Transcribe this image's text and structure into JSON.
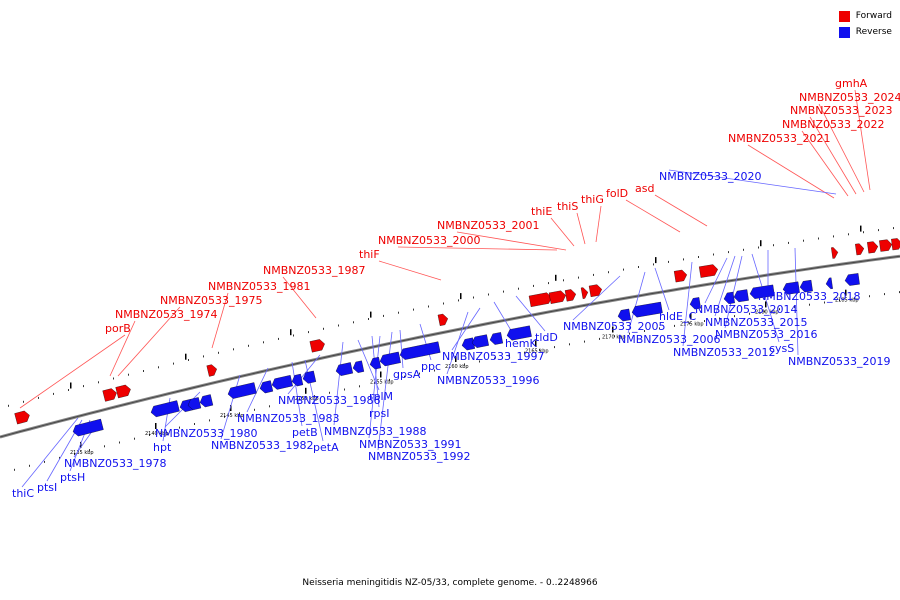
{
  "caption": "Neisseria meningitidis NZ-05/33, complete genome. - 0..2248966",
  "legend": {
    "forward": {
      "label": "Forward",
      "color": "#ee0000"
    },
    "reverse": {
      "label": "Reverse",
      "color": "#1010ee"
    }
  },
  "colors": {
    "forward": "#ee0000",
    "reverse": "#1010ee",
    "backbone": "#888888",
    "leader": "#ff5555",
    "leader_rev": "#6666ff"
  },
  "ticks": [
    {
      "label": "2135 kbp"
    },
    {
      "label": "2140 kbp"
    },
    {
      "label": "2145 kbp"
    },
    {
      "label": "2150 kbp"
    },
    {
      "label": "2155 kbp"
    },
    {
      "label": "2160 kbp"
    },
    {
      "label": "2165 kbp"
    },
    {
      "label": "2170 kbp"
    },
    {
      "label": "2175 kbp"
    },
    {
      "label": "2180 kbp"
    },
    {
      "label": "2185 kbp"
    }
  ],
  "forward_labels": [
    {
      "text": "porB"
    },
    {
      "text": "NMBNZ0533_1974"
    },
    {
      "text": "NMBNZ0533_1975"
    },
    {
      "text": "NMBNZ0533_1981"
    },
    {
      "text": "NMBNZ0533_1987"
    },
    {
      "text": "thiF"
    },
    {
      "text": "NMBNZ0533_2000"
    },
    {
      "text": "NMBNZ0533_2001"
    },
    {
      "text": "thiE"
    },
    {
      "text": "thiS"
    },
    {
      "text": "thiG"
    },
    {
      "text": "folD"
    },
    {
      "text": "asd"
    },
    {
      "text": "NMBNZ0533_2021"
    },
    {
      "text": "NMBNZ0533_2022"
    },
    {
      "text": "NMBNZ0533_2023"
    },
    {
      "text": "NMBNZ0533_2024"
    },
    {
      "text": "gmhA"
    }
  ],
  "reverse_labels": [
    {
      "text": "NMBNZ0533_2020"
    },
    {
      "text": "thiC"
    },
    {
      "text": "ptsI"
    },
    {
      "text": "ptsH"
    },
    {
      "text": "NMBNZ0533_1978"
    },
    {
      "text": "hpt"
    },
    {
      "text": "NMBNZ0533_1980"
    },
    {
      "text": "NMBNZ0533_1982"
    },
    {
      "text": "NMBNZ0533_1983"
    },
    {
      "text": "petB"
    },
    {
      "text": "petA"
    },
    {
      "text": "NMBNZ0533_1986"
    },
    {
      "text": "NMBNZ0533_1988"
    },
    {
      "text": "rplM"
    },
    {
      "text": "rpsI"
    },
    {
      "text": "NMBNZ0533_1991"
    },
    {
      "text": "NMBNZ0533_1992"
    },
    {
      "text": "gpsA"
    },
    {
      "text": "ppc"
    },
    {
      "text": "NMBNZ0533_1996"
    },
    {
      "text": "NMBNZ0533_1997"
    },
    {
      "text": "hemK"
    },
    {
      "text": "tldD"
    },
    {
      "text": "NMBNZ0533_2005"
    },
    {
      "text": "NMBNZ0533_2006"
    },
    {
      "text": "hldE_C"
    },
    {
      "text": "NMBNZ0533_2012"
    },
    {
      "text": "NMBNZ0533_2014"
    },
    {
      "text": "NMBNZ0533_2015"
    },
    {
      "text": "NMBNZ0533_2016"
    },
    {
      "text": "cysS"
    },
    {
      "text": "NMBNZ0533_2018"
    },
    {
      "text": "NMBNZ0533_2019"
    }
  ]
}
